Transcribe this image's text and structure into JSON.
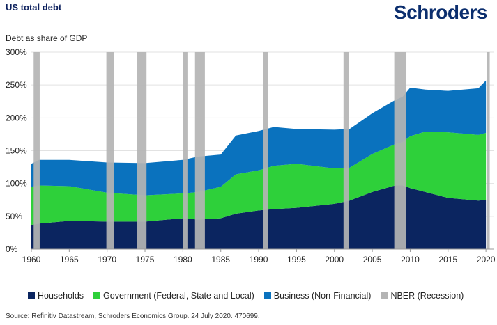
{
  "header": {
    "title": "US total debt",
    "logo": "Schroders",
    "subtitle": "Debt as share of GDP"
  },
  "source": "Source: Refinitiv Datastream, Schroders Economics Group. 24 July 2020. 470699.",
  "colors": {
    "households": "#0b2560",
    "government": "#2ed03a",
    "business": "#0a72be",
    "recession": "#b4b4b4"
  },
  "chart_data": {
    "type": "area",
    "stacked": true,
    "ylim": [
      0,
      300
    ],
    "xlim": [
      1960,
      2021
    ],
    "y_ticks": [
      "0%",
      "50%",
      "100%",
      "150%",
      "200%",
      "250%",
      "300%"
    ],
    "x_ticks": [
      "1960",
      "1965",
      "1970",
      "1975",
      "1980",
      "1985",
      "1990",
      "1995",
      "2000",
      "2005",
      "2010",
      "2015",
      "2020"
    ],
    "grid": "horizontal",
    "legend_position": "bottom",
    "x": [
      1960,
      1961,
      1965,
      1970,
      1975,
      1980,
      1982,
      1985,
      1987,
      1990,
      1992,
      1995,
      2000,
      2002,
      2005,
      2008,
      2009,
      2010,
      2012,
      2015,
      2019,
      2020
    ],
    "series": [
      {
        "name": "Households",
        "values": [
          37,
          39,
          43,
          42,
          42,
          47,
          45,
          47,
          54,
          59,
          61,
          63,
          69,
          74,
          87,
          97,
          97,
          93,
          87,
          78,
          74,
          75
        ]
      },
      {
        "name": "Government (Federal, State and Local)",
        "values": [
          58,
          58,
          53,
          44,
          40,
          38,
          42,
          48,
          60,
          61,
          66,
          67,
          54,
          50,
          58,
          63,
          66,
          79,
          92,
          100,
          100,
          102
        ]
      },
      {
        "name": "Business (Non-Financial)",
        "values": [
          35,
          39,
          40,
          46,
          49,
          51,
          54,
          49,
          59,
          60,
          59,
          53,
          59,
          59,
          62,
          67,
          69,
          74,
          64,
          63,
          71,
          80
        ]
      }
    ],
    "recessions": [
      {
        "label": "NBER (Recession)",
        "start": 1960.3,
        "end": 1961.1
      },
      {
        "start": 1969.9,
        "end": 1970.9
      },
      {
        "start": 1973.9,
        "end": 1975.2
      },
      {
        "start": 1980.0,
        "end": 1980.6
      },
      {
        "start": 1981.6,
        "end": 1982.9
      },
      {
        "start": 1990.6,
        "end": 1991.2
      },
      {
        "start": 2001.2,
        "end": 2001.9
      },
      {
        "start": 2007.9,
        "end": 2009.5
      },
      {
        "start": 2020.1,
        "end": 2020.5
      }
    ]
  },
  "legend": [
    {
      "label": "Households",
      "key": "households"
    },
    {
      "label": "Government (Federal, State and Local)",
      "key": "government"
    },
    {
      "label": "Business (Non-Financial)",
      "key": "business"
    },
    {
      "label": "NBER (Recession)",
      "key": "recession"
    }
  ]
}
